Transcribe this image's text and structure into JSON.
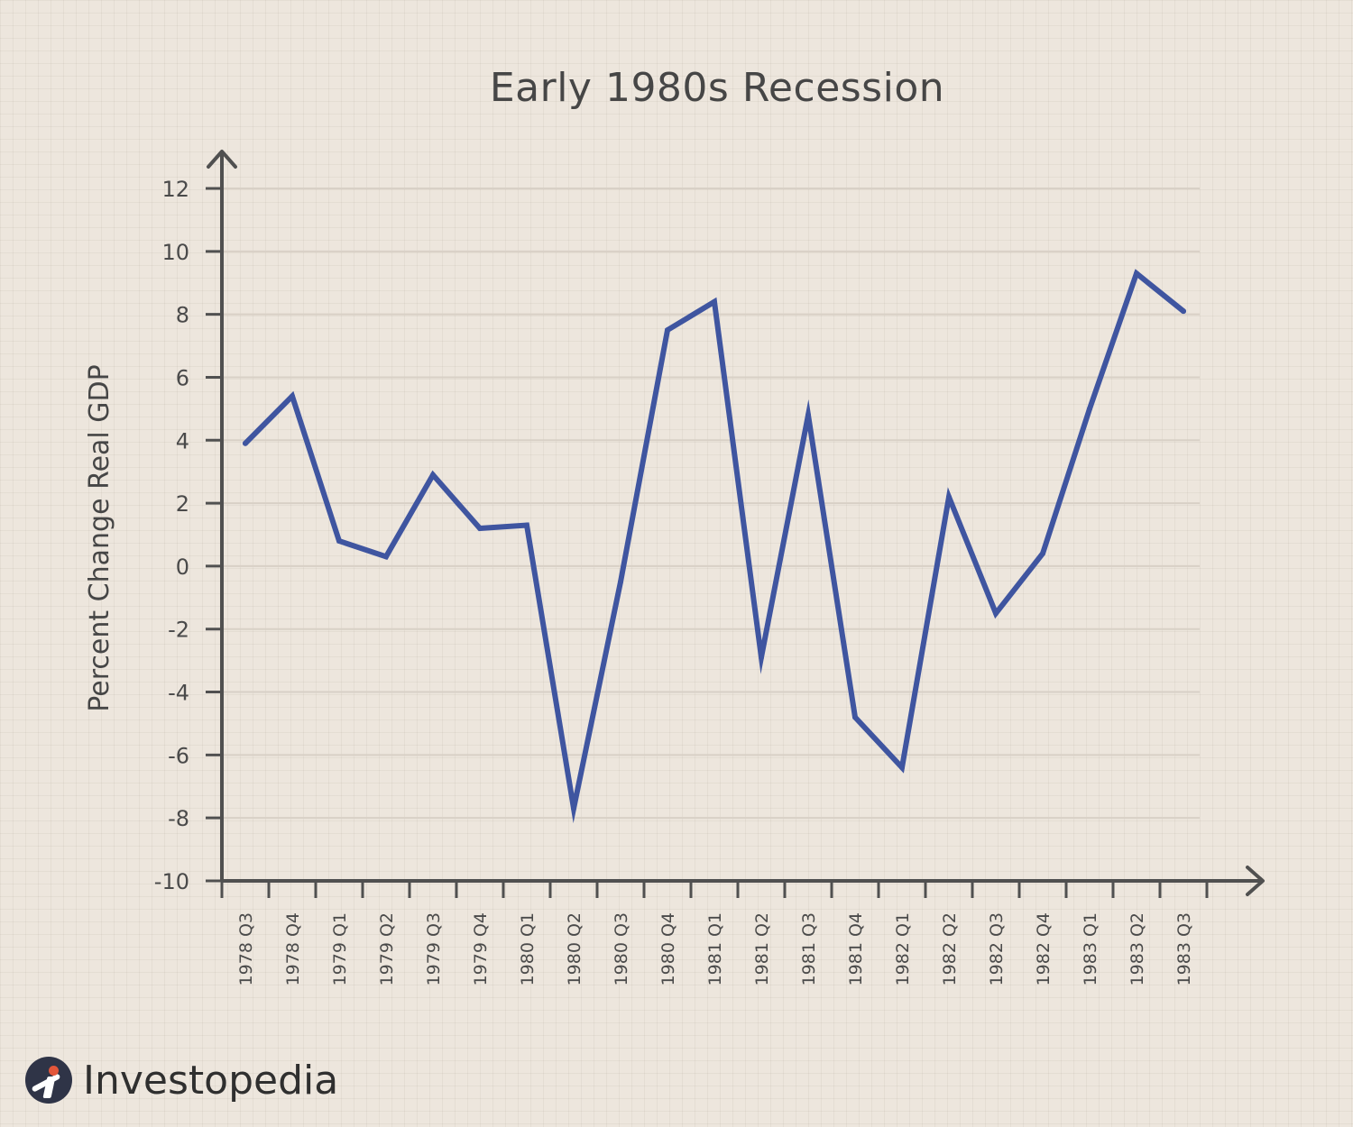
{
  "chart_data": {
    "type": "line",
    "title": "Early 1980s Recession",
    "xlabel": "",
    "ylabel": "Percent Change Real GDP",
    "ylim": [
      -10,
      12
    ],
    "yticks": [
      12,
      10,
      8,
      6,
      4,
      2,
      0,
      -2,
      -4,
      -6,
      -8,
      -10
    ],
    "ytick_labels": [
      "12",
      "10",
      "8",
      "6",
      "4",
      "2",
      "0",
      "-2",
      "-4",
      "-6",
      "-8",
      "-10"
    ],
    "grid": true,
    "categories": [
      "1978 Q3",
      "1978 Q4",
      "1979 Q1",
      "1979 Q2",
      "1979 Q3",
      "1979 Q4",
      "1980 Q1",
      "1980 Q2",
      "1980 Q3",
      "1980 Q4",
      "1981 Q1",
      "1981 Q2",
      "1981 Q3",
      "1981 Q4",
      "1982 Q1",
      "1982 Q2",
      "1982 Q3",
      "1982 Q4",
      "1983 Q1",
      "1983 Q2",
      "1983 Q3"
    ],
    "series": [
      {
        "values": [
          3.9,
          5.4,
          0.8,
          0.3,
          2.9,
          1.2,
          1.3,
          -7.7,
          -0.5,
          7.5,
          8.4,
          -2.9,
          4.8,
          -4.8,
          -6.4,
          2.2,
          -1.5,
          0.4,
          5.0,
          9.3,
          8.1
        ],
        "color": "#3f55a0"
      }
    ],
    "colors": {
      "line": "#3f55a0",
      "axis": "#505050",
      "grid": "#d8d0c6"
    }
  },
  "brand": {
    "name": "Investopedia",
    "icon": "investopedia-logo-icon"
  }
}
